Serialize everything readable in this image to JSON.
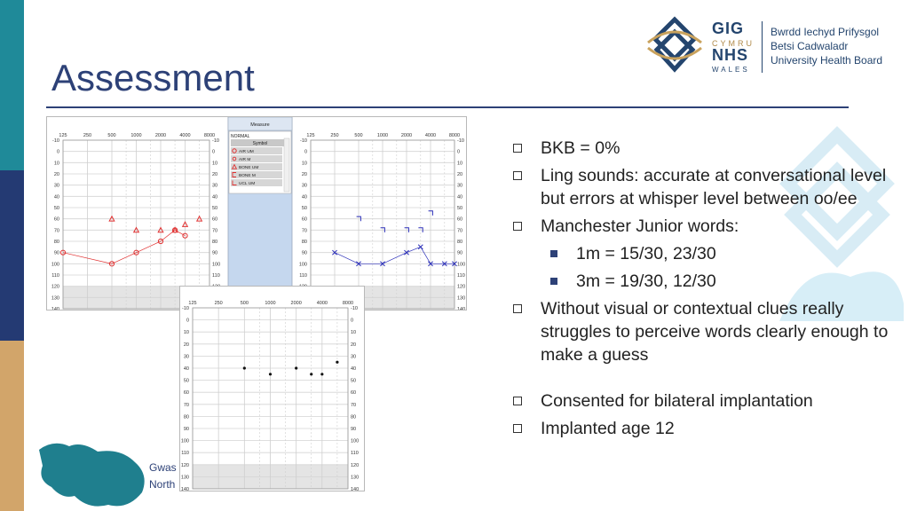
{
  "slide": {
    "title": "Assessment",
    "footer_line1": "Gwas",
    "footer_line2": "North"
  },
  "logo": {
    "gig": "GIG",
    "cymru": "CYMRU",
    "nhs": "NHS",
    "wales": "WALES",
    "org_line1": "Bwrdd Iechyd Prifysgol",
    "org_line2": "Betsi Cadwaladr",
    "org_line3": "University Health Board"
  },
  "bullets": [
    {
      "level": 1,
      "text": "BKB = 0%"
    },
    {
      "level": 1,
      "text": "Ling sounds: accurate at conversational level but errors at whisper level between oo/ee"
    },
    {
      "level": 1,
      "text": "Manchester Junior words:"
    },
    {
      "level": 2,
      "text": "1m = 15/30, 23/30"
    },
    {
      "level": 2,
      "text": "3m = 19/30, 12/30"
    },
    {
      "level": 1,
      "text": "Without visual or contextual clues really struggles to perceive words clearly enough to make a guess"
    },
    {
      "level": 1,
      "text": "Consented for bilateral implantation",
      "gap": true
    },
    {
      "level": 1,
      "text": "Implanted age 12"
    }
  ],
  "audiogram": {
    "freq_labels": [
      "125",
      "250",
      "500",
      "1000",
      "2000",
      "4000",
      "8000"
    ],
    "db_labels": [
      "-10",
      "0",
      "10",
      "20",
      "30",
      "40",
      "50",
      "60",
      "70",
      "80",
      "90",
      "100",
      "110",
      "120",
      "130",
      "140"
    ],
    "colors": {
      "right": "#e03030",
      "left": "#2b2fb8",
      "sound_field": "#111111"
    },
    "measure_panel": {
      "header": "Measure",
      "mode": "NORMAL",
      "symbol_header": "Symbol",
      "rows": [
        {
          "label": "AIR UM",
          "icon": "circle"
        },
        {
          "label": "AIR M",
          "icon": "circle-small"
        },
        {
          "label": "BONE UM",
          "icon": "triangle"
        },
        {
          "label": "BONE M",
          "icon": "bracket"
        },
        {
          "label": "UCL UM",
          "icon": "corner"
        }
      ]
    }
  },
  "chart_data": [
    {
      "type": "scatter",
      "title": "",
      "xlabel": "",
      "ylabel": "",
      "x_scale": "log2",
      "x_ticks": [
        125,
        250,
        500,
        1000,
        2000,
        4000,
        8000
      ],
      "ylim": [
        -10,
        140
      ],
      "y_inverted": true,
      "series": [
        {
          "marker": "circle",
          "x": [
            125,
            500,
            1000,
            2000,
            3000,
            4000
          ],
          "y": [
            90,
            100,
            90,
            80,
            70,
            75
          ]
        },
        {
          "marker": "triangle",
          "x": [
            500,
            1000,
            2000,
            3000,
            4000,
            6000
          ],
          "y": [
            60,
            70,
            70,
            70,
            65,
            60
          ]
        }
      ]
    },
    {
      "type": "scatter",
      "title": "",
      "xlabel": "",
      "ylabel": "",
      "x_scale": "log2",
      "x_ticks": [
        125,
        250,
        500,
        1000,
        2000,
        4000,
        8000
      ],
      "ylim": [
        -10,
        140
      ],
      "y_inverted": true,
      "series": [
        {
          "marker": "cross",
          "x": [
            250,
            500,
            1000,
            2000,
            3000,
            4000,
            6000,
            8000
          ],
          "y": [
            90,
            100,
            100,
            90,
            85,
            100,
            100,
            100
          ]
        },
        {
          "marker": "bracket",
          "x": [
            500,
            1000,
            2000,
            3000,
            4000
          ],
          "y": [
            60,
            70,
            70,
            70,
            55
          ]
        }
      ]
    },
    {
      "type": "scatter",
      "title": "",
      "xlabel": "",
      "ylabel": "",
      "x_scale": "log2",
      "x_ticks": [
        125,
        250,
        500,
        1000,
        2000,
        4000,
        8000
      ],
      "ylim": [
        -10,
        140
      ],
      "y_inverted": true,
      "series": [
        {
          "marker": "dot",
          "x": [
            500,
            1000,
            2000,
            3000,
            4000,
            6000
          ],
          "y": [
            40,
            45,
            40,
            45,
            45,
            35
          ]
        }
      ]
    }
  ]
}
